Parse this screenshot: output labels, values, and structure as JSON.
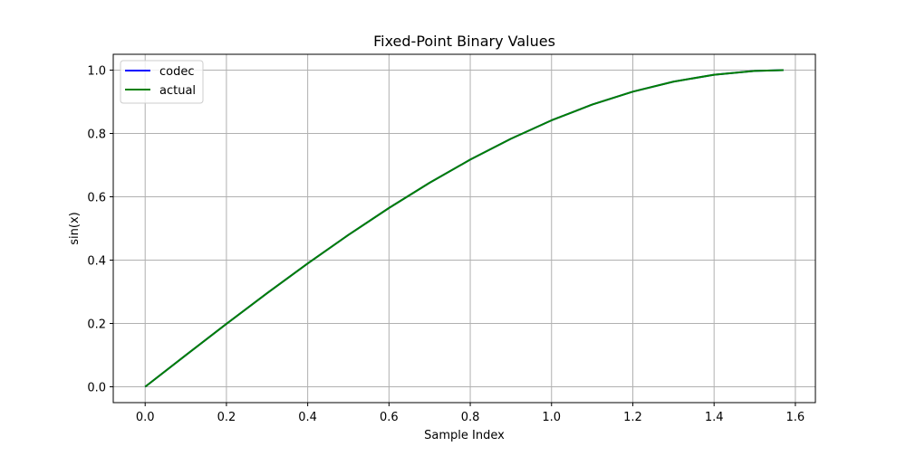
{
  "chart_data": {
    "type": "line",
    "title": "Fixed-Point Binary Values",
    "xlabel": "Sample Index",
    "ylabel": "sin(x)",
    "xlim": [
      -0.0785,
      1.6493
    ],
    "ylim": [
      -0.05,
      1.05
    ],
    "xticks": [
      0.0,
      0.2,
      0.4,
      0.6,
      0.8,
      1.0,
      1.2,
      1.4,
      1.6
    ],
    "xtick_labels": [
      "0.0",
      "0.2",
      "0.4",
      "0.6",
      "0.8",
      "1.0",
      "1.2",
      "1.4",
      "1.6"
    ],
    "yticks": [
      0.0,
      0.2,
      0.4,
      0.6,
      0.8,
      1.0
    ],
    "ytick_labels": [
      "0.0",
      "0.2",
      "0.4",
      "0.6",
      "0.8",
      "1.0"
    ],
    "grid": true,
    "legend_position": "top-left",
    "x": [
      0.0,
      0.1,
      0.2,
      0.3,
      0.4,
      0.5,
      0.6,
      0.7,
      0.8,
      0.9,
      1.0,
      1.1,
      1.2,
      1.3,
      1.4,
      1.5,
      1.5708
    ],
    "series": [
      {
        "name": "codec",
        "color": "#0000ff",
        "values": [
          0.0,
          0.0998,
          0.1987,
          0.2955,
          0.3894,
          0.4794,
          0.5646,
          0.6442,
          0.7174,
          0.7833,
          0.8415,
          0.8912,
          0.932,
          0.9636,
          0.9854,
          0.9975,
          1.0
        ]
      },
      {
        "name": "actual",
        "color": "#008000",
        "values": [
          0.0,
          0.0998,
          0.1987,
          0.2955,
          0.3894,
          0.4794,
          0.5646,
          0.6442,
          0.7174,
          0.7833,
          0.8415,
          0.8912,
          0.932,
          0.9636,
          0.9854,
          0.9975,
          1.0
        ]
      }
    ]
  }
}
